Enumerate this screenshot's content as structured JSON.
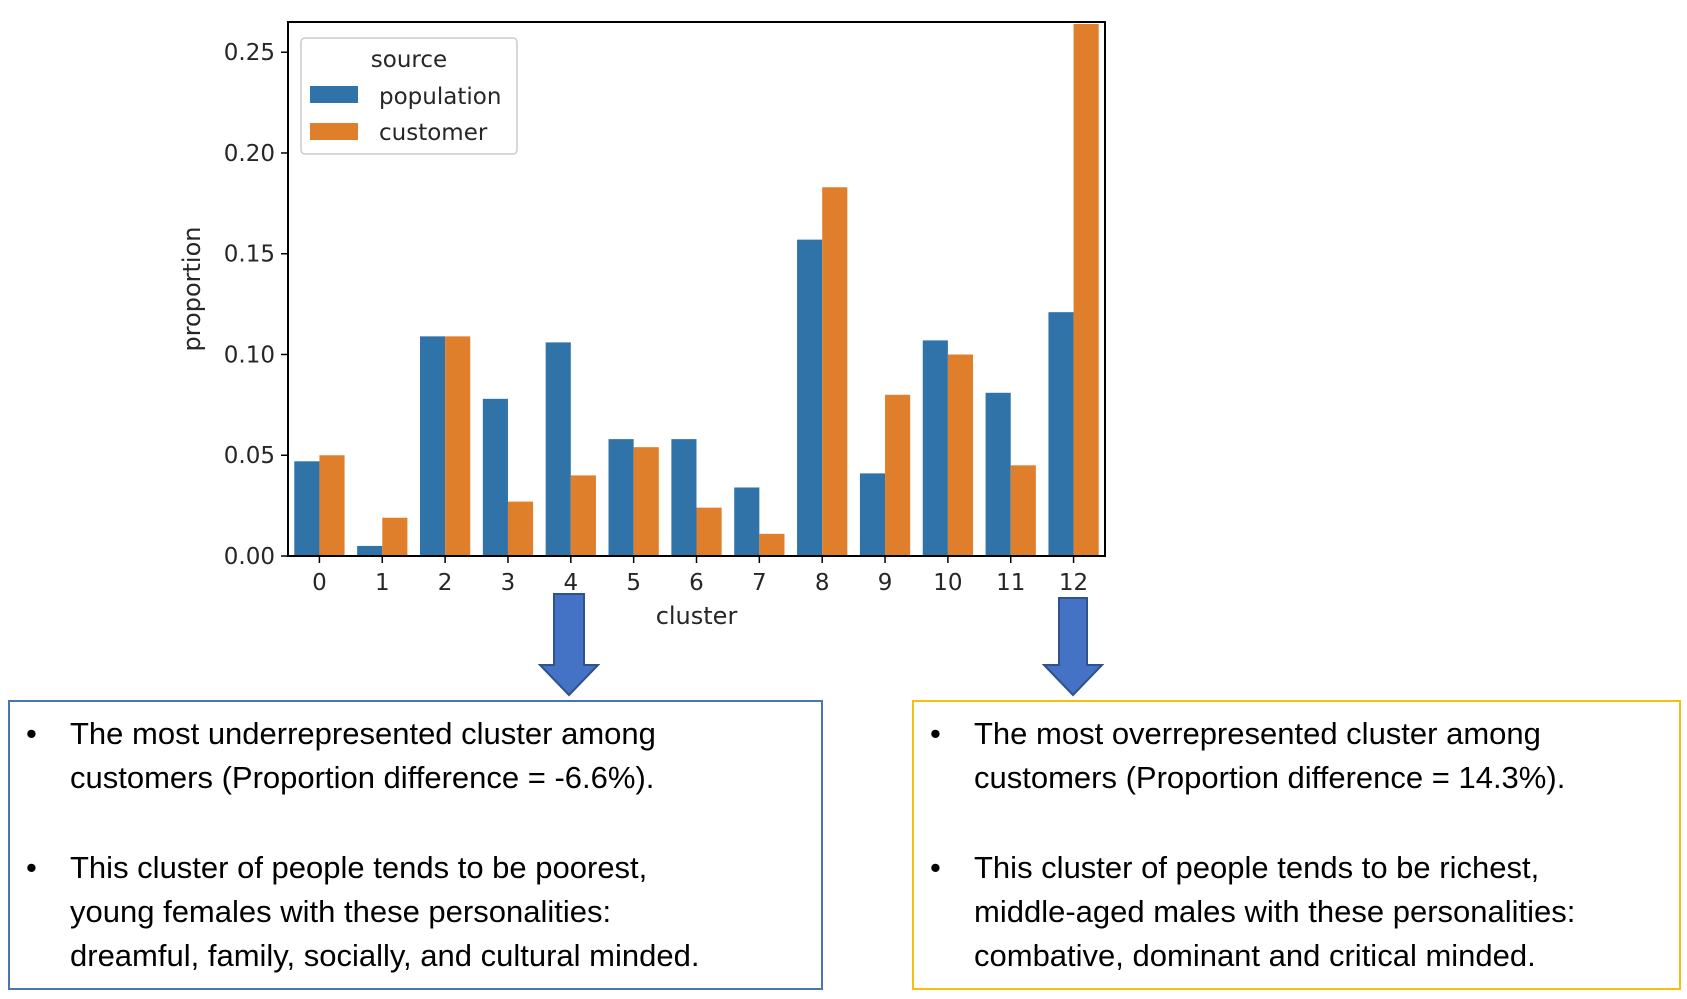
{
  "chart_data": {
    "type": "bar",
    "xlabel": "cluster",
    "ylabel": "proportion",
    "categories": [
      "0",
      "1",
      "2",
      "3",
      "4",
      "5",
      "6",
      "7",
      "8",
      "9",
      "10",
      "11",
      "12"
    ],
    "ylim": [
      0,
      0.265
    ],
    "yticks": [
      "0.00",
      "0.05",
      "0.10",
      "0.15",
      "0.20",
      "0.25"
    ],
    "ytick_values": [
      0,
      0.05,
      0.1,
      0.15,
      0.2,
      0.25
    ],
    "legend": {
      "title": "source",
      "position": "top-left"
    },
    "grid": false,
    "series": [
      {
        "name": "population",
        "color": "#2f73a8",
        "values": [
          0.047,
          0.005,
          0.109,
          0.078,
          0.106,
          0.058,
          0.058,
          0.034,
          0.157,
          0.041,
          0.107,
          0.081,
          0.121
        ]
      },
      {
        "name": "customer",
        "color": "#e07f2b",
        "values": [
          0.05,
          0.019,
          0.109,
          0.027,
          0.04,
          0.054,
          0.024,
          0.011,
          0.183,
          0.08,
          0.1,
          0.045,
          0.264
        ]
      }
    ]
  },
  "annotations": {
    "left": {
      "border_color": "#4a74b8",
      "arrow_color": "#4472c4",
      "target_cluster": "4",
      "bullets": [
        [
          "The most underrepresented cluster among",
          "customers (Proportion difference = -6.6%)."
        ],
        [
          "This cluster of people tends to be poorest,",
          "young females with these personalities:",
          "dreamful, family, socially, and cultural minded."
        ]
      ]
    },
    "right": {
      "border_color": "#f3c012",
      "arrow_color": "#4472c4",
      "target_cluster": "12",
      "bullets": [
        [
          "The most overrepresented cluster among",
          "customers (Proportion difference = 14.3%)."
        ],
        [
          "This cluster of people tends to be richest,",
          "middle-aged males with these personalities:",
          "combative, dominant and critical minded."
        ]
      ]
    },
    "bullet_symbol": "•"
  }
}
